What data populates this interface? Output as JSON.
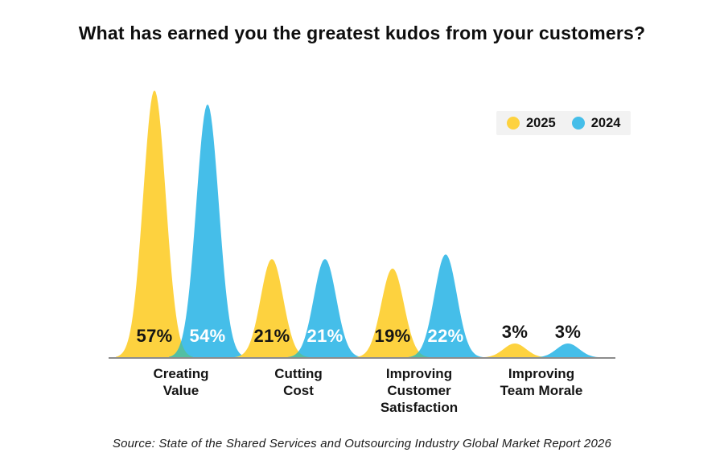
{
  "title": "What has earned you the greatest kudos from your customers?",
  "source": "Source: State of the Shared Services and Outsourcing Industry Global Market Report 2026",
  "colors": {
    "series_2025": "#FDD23F",
    "series_2024": "#45BEE9",
    "overlap": "#53BFA3",
    "baseline": "#8C8C8C",
    "legend_bg": "#F2F2F2",
    "title_text": "#0E0E0E",
    "label_dark": "#141414",
    "label_light": "#FFFFFF"
  },
  "legend": {
    "items": [
      {
        "label": "2025",
        "color": "#FDD23F"
      },
      {
        "label": "2024",
        "color": "#45BEE9"
      }
    ]
  },
  "chart_data": {
    "type": "area",
    "variant": "bell-curve-column-chart",
    "title": "What has earned you the greatest kudos from your customers?",
    "categories": [
      "Creating Value",
      "Cutting Cost",
      "Improving Customer Satisfaction",
      "Improving Team Morale"
    ],
    "category_lines": [
      "Creating\nValue",
      "Cutting\nCost",
      "Improving\nCustomer\nSatisfaction",
      "Improving\nTeam Morale"
    ],
    "series": [
      {
        "name": "2025",
        "color": "#FDD23F",
        "values": [
          57,
          21,
          19,
          3
        ],
        "labels": [
          "57%",
          "21%",
          "19%",
          "3%"
        ]
      },
      {
        "name": "2024",
        "color": "#45BEE9",
        "values": [
          54,
          21,
          22,
          3
        ],
        "labels": [
          "54%",
          "21%",
          "22%",
          "3%"
        ]
      }
    ],
    "unit": "%",
    "ylim": [
      0,
      60
    ],
    "grid": false,
    "y_axis_shown": false,
    "legend_position": "top-right",
    "footnote": "Source: State of the Shared Services and Outsourcing Industry Global Market Report 2026"
  }
}
